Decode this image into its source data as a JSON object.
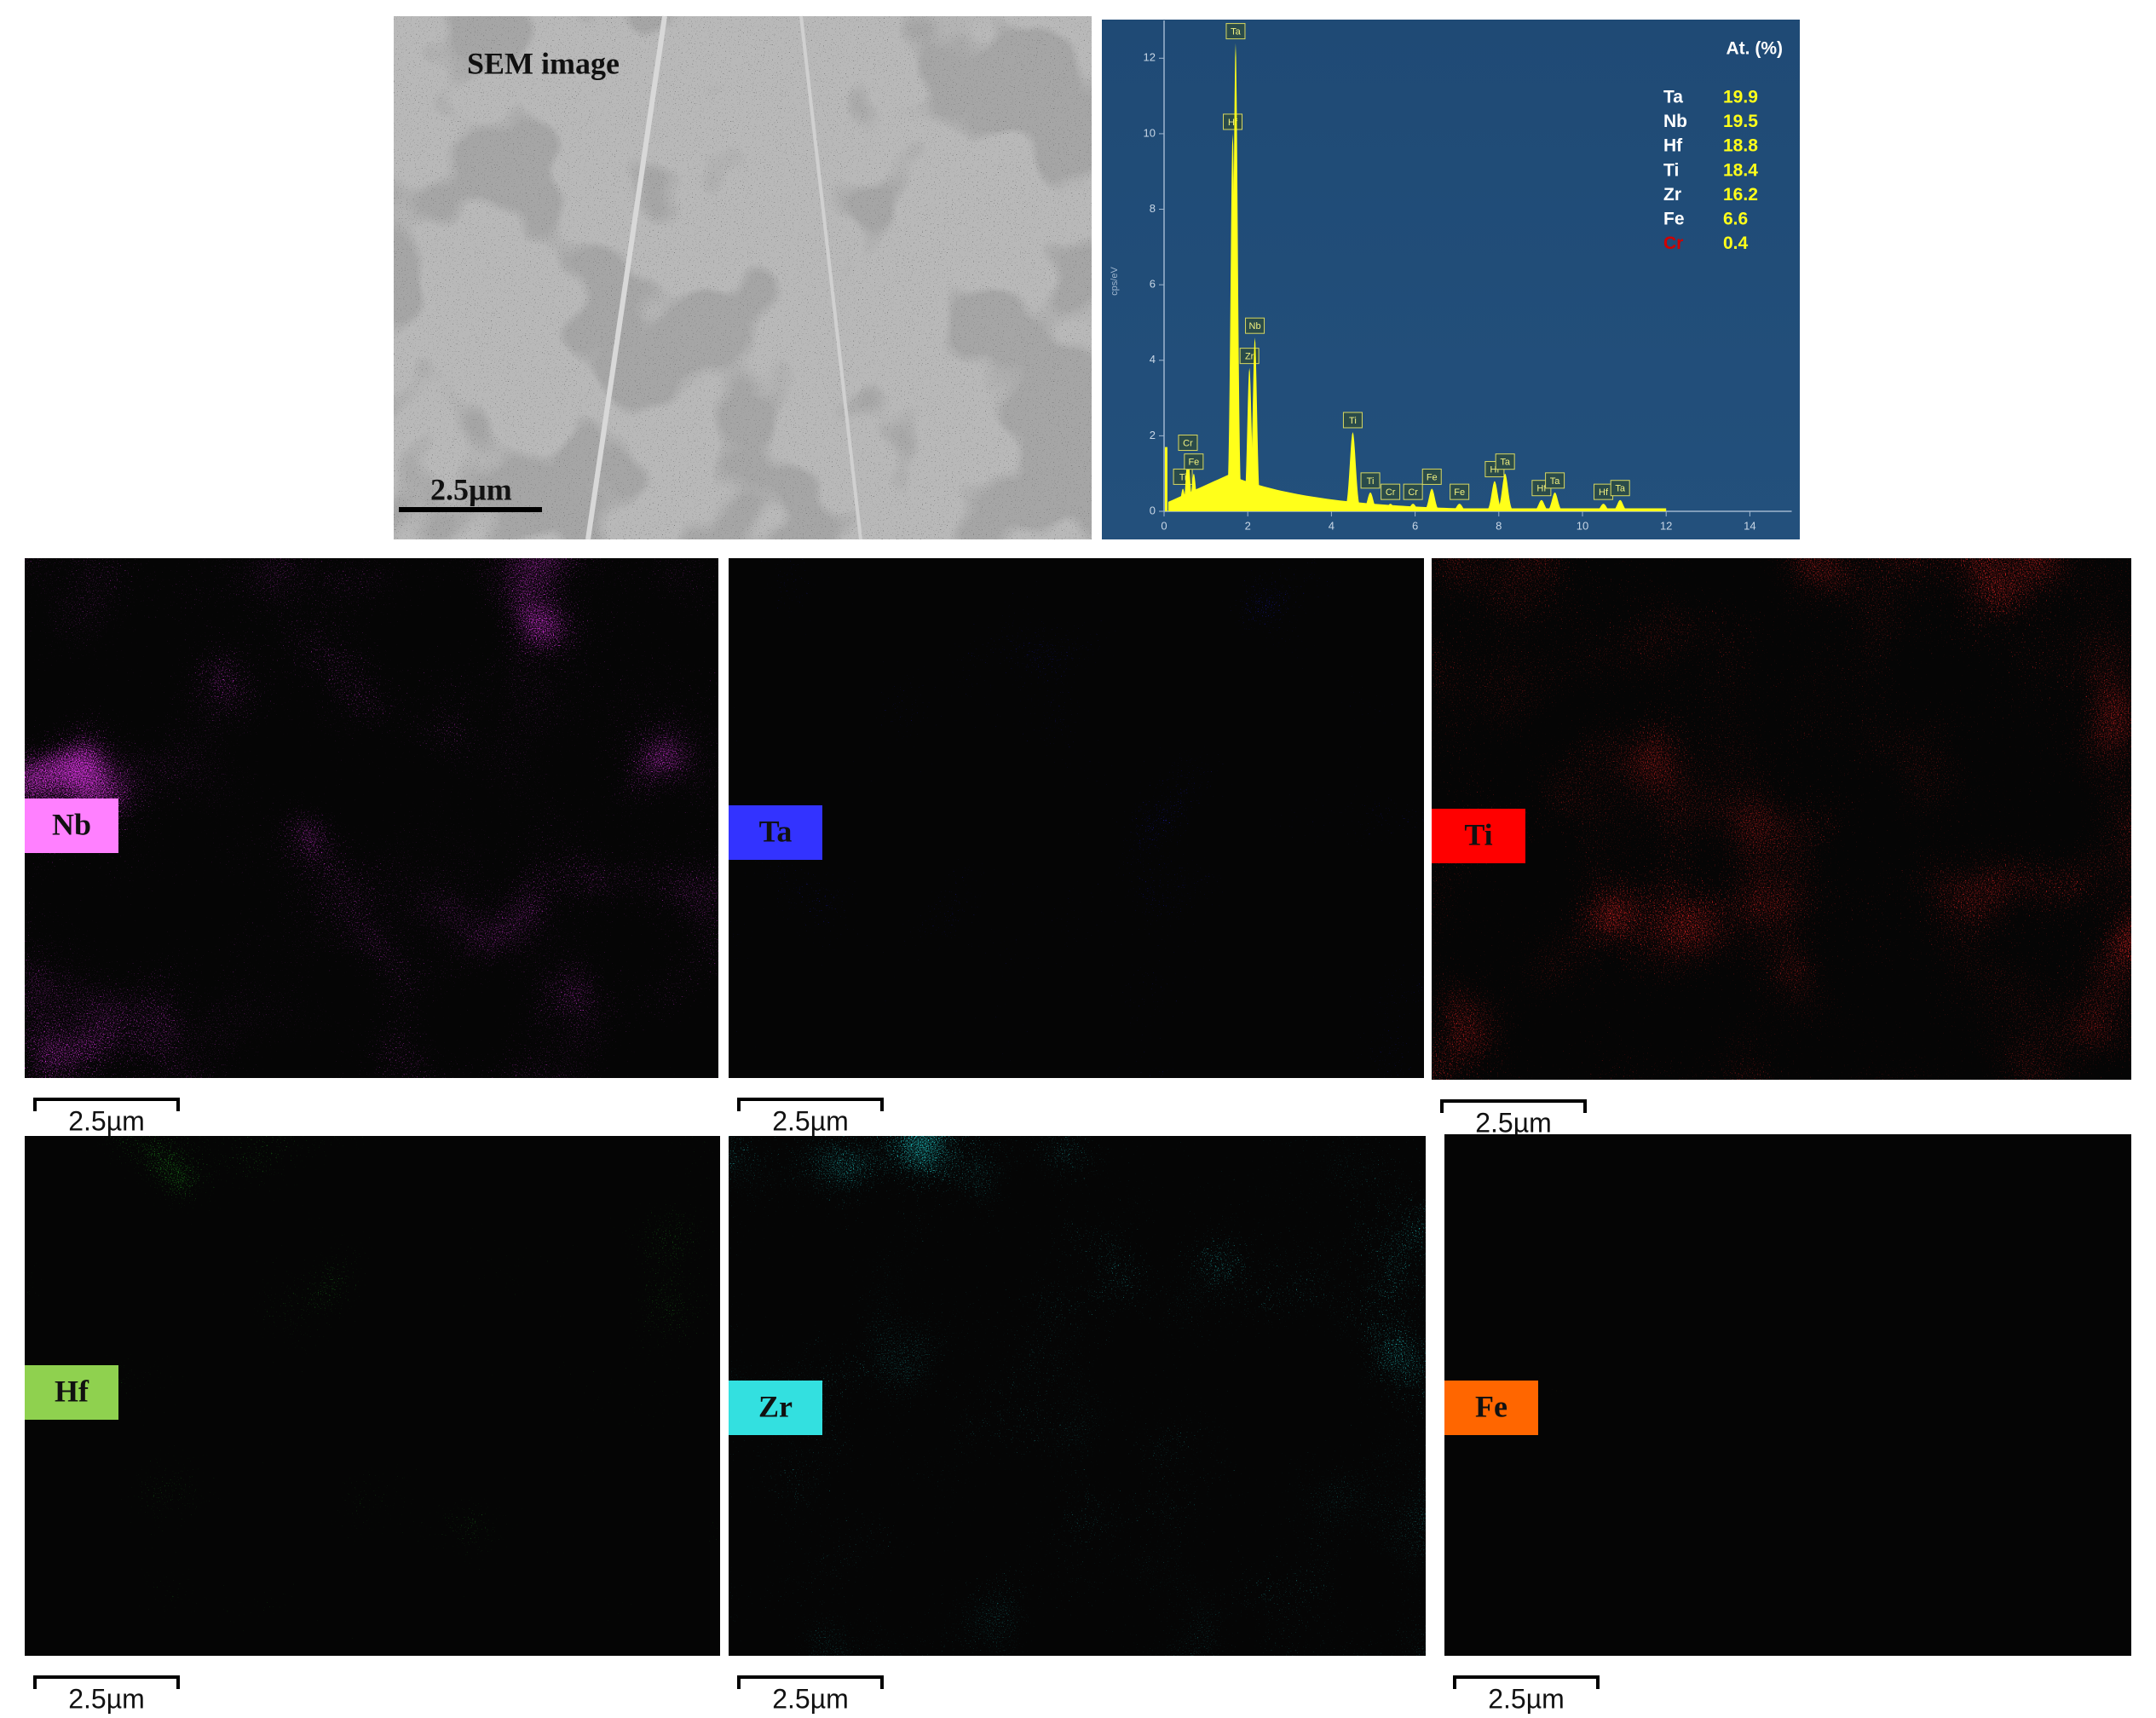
{
  "sem": {
    "label": "SEM image",
    "scale_bar": "2.5µm"
  },
  "chart_data": {
    "type": "spectrum",
    "y_label": "cps/eV",
    "xlim": [
      0,
      15
    ],
    "xticks": [
      0,
      2,
      4,
      6,
      8,
      10,
      12,
      14
    ],
    "ylim": [
      0,
      13
    ],
    "yticks": [
      0,
      2,
      4,
      6,
      8,
      10,
      12
    ],
    "color": "#ffff1a",
    "peaks": [
      {
        "label": "Ti",
        "x": 0.45,
        "y": 0.6
      },
      {
        "label": "Cr",
        "x": 0.57,
        "y": 1.5
      },
      {
        "label": "Fe",
        "x": 0.71,
        "y": 1.0
      },
      {
        "label": "Hf",
        "x": 1.64,
        "y": 10.0
      },
      {
        "label": "Ta",
        "x": 1.71,
        "y": 12.4
      },
      {
        "label": "Zr",
        "x": 2.04,
        "y": 3.8
      },
      {
        "label": "Nb",
        "x": 2.17,
        "y": 4.6
      },
      {
        "label": "Ti",
        "x": 4.51,
        "y": 2.1
      },
      {
        "label": "Ti",
        "x": 4.93,
        "y": 0.5
      },
      {
        "label": "Cr",
        "x": 5.41,
        "y": 0.2
      },
      {
        "label": "Cr",
        "x": 5.95,
        "y": 0.2
      },
      {
        "label": "Fe",
        "x": 6.4,
        "y": 0.6
      },
      {
        "label": "Fe",
        "x": 7.06,
        "y": 0.2
      },
      {
        "label": "Hf",
        "x": 7.9,
        "y": 0.8
      },
      {
        "label": "Ta",
        "x": 8.15,
        "y": 1.0
      },
      {
        "label": "Hf",
        "x": 9.02,
        "y": 0.3
      },
      {
        "label": "Ta",
        "x": 9.34,
        "y": 0.5
      },
      {
        "label": "Hf",
        "x": 10.5,
        "y": 0.2
      },
      {
        "label": "Ta",
        "x": 10.9,
        "y": 0.3
      }
    ],
    "table": {
      "header": "At. (%)",
      "rows": [
        {
          "element": "Ta",
          "value": "19.9",
          "color": "#ffffff"
        },
        {
          "element": "Nb",
          "value": "19.5",
          "color": "#ffffff"
        },
        {
          "element": "Hf",
          "value": "18.8",
          "color": "#ffffff"
        },
        {
          "element": "Ti",
          "value": "18.4",
          "color": "#ffffff"
        },
        {
          "element": "Zr",
          "value": "16.2",
          "color": "#ffffff"
        },
        {
          "element": "Fe",
          "value": "6.6",
          "color": "#ffffff"
        },
        {
          "element": "Cr",
          "value": "0.4",
          "color": "#d00000"
        }
      ]
    }
  },
  "maps": [
    {
      "element": "Nb",
      "color": "#e033e8",
      "label_bg": "#ff80ff",
      "scale_bar": "2.5µm"
    },
    {
      "element": "Ta",
      "color": "#2222ee",
      "label_bg": "#3333ff",
      "scale_bar": "2.5µm"
    },
    {
      "element": "Ti",
      "color": "#ee2222",
      "label_bg": "#ff0000",
      "scale_bar": "2.5µm"
    },
    {
      "element": "Hf",
      "color": "#22aa22",
      "label_bg": "#8fd14f",
      "scale_bar": "2.5µm"
    },
    {
      "element": "Zr",
      "color": "#22e0e0",
      "label_bg": "#33e0e0",
      "scale_bar": "2.5µm"
    },
    {
      "element": "Fe",
      "color": "#f07a20",
      "label_bg": "#ff6600",
      "scale_bar": "2.5µm"
    }
  ]
}
